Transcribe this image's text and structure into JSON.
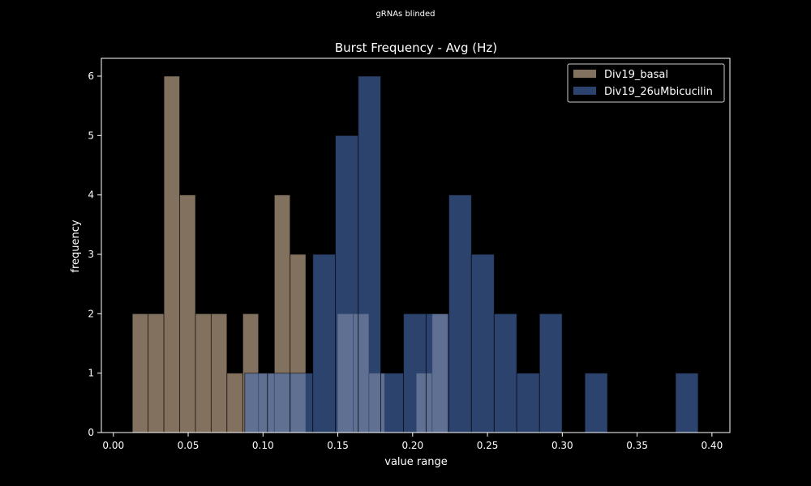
{
  "chart_data": {
    "type": "bar",
    "suptitle": "gRNAs blinded",
    "title": "Burst Frequency - Avg (Hz)",
    "xlabel": "value range",
    "ylabel": "frequency",
    "xlim": [
      -0.008,
      0.412
    ],
    "ylim": [
      0,
      6.3
    ],
    "xticks": [
      0.0,
      0.05,
      0.1,
      0.15,
      0.2,
      0.25,
      0.3,
      0.35,
      0.4
    ],
    "xtick_labels": [
      "0.00",
      "0.05",
      "0.10",
      "0.15",
      "0.20",
      "0.25",
      "0.30",
      "0.35",
      "0.40"
    ],
    "yticks": [
      0,
      1,
      2,
      3,
      4,
      5,
      6
    ],
    "ytick_labels": [
      "0",
      "1",
      "2",
      "3",
      "4",
      "5",
      "6"
    ],
    "grid": false,
    "legend_position": "top-right",
    "series": [
      {
        "name": "Div19_basal",
        "color": "#d8bc9c",
        "opacity": 0.6,
        "bins": [
          {
            "x0": 0.0127,
            "x1": 0.0232,
            "count": 2
          },
          {
            "x0": 0.0232,
            "x1": 0.0338,
            "count": 2
          },
          {
            "x0": 0.0338,
            "x1": 0.0443,
            "count": 6
          },
          {
            "x0": 0.0443,
            "x1": 0.0549,
            "count": 4
          },
          {
            "x0": 0.0549,
            "x1": 0.0654,
            "count": 2
          },
          {
            "x0": 0.0654,
            "x1": 0.0759,
            "count": 2
          },
          {
            "x0": 0.0759,
            "x1": 0.0865,
            "count": 1
          },
          {
            "x0": 0.0865,
            "x1": 0.097,
            "count": 2
          },
          {
            "x0": 0.097,
            "x1": 0.1076,
            "count": 1
          },
          {
            "x0": 0.1076,
            "x1": 0.1181,
            "count": 4
          },
          {
            "x0": 0.1181,
            "x1": 0.1286,
            "count": 3
          },
          {
            "x0": 0.1286,
            "x1": 0.1392,
            "count": 0
          },
          {
            "x0": 0.1392,
            "x1": 0.1497,
            "count": 0
          },
          {
            "x0": 0.1497,
            "x1": 0.1603,
            "count": 2
          },
          {
            "x0": 0.1603,
            "x1": 0.1708,
            "count": 2
          },
          {
            "x0": 0.1708,
            "x1": 0.1813,
            "count": 1
          },
          {
            "x0": 0.1813,
            "x1": 0.1919,
            "count": 0
          },
          {
            "x0": 0.1919,
            "x1": 0.2024,
            "count": 0
          },
          {
            "x0": 0.2024,
            "x1": 0.213,
            "count": 1
          },
          {
            "x0": 0.213,
            "x1": 0.2235,
            "count": 2
          }
        ]
      },
      {
        "name": "Div19_26uMbicucilin",
        "color": "#4a6fb8",
        "opacity": 0.6,
        "bins": [
          {
            "x0": 0.0878,
            "x1": 0.103,
            "count": 1
          },
          {
            "x0": 0.103,
            "x1": 0.1181,
            "count": 1
          },
          {
            "x0": 0.1181,
            "x1": 0.1333,
            "count": 1
          },
          {
            "x0": 0.1333,
            "x1": 0.1484,
            "count": 3
          },
          {
            "x0": 0.1484,
            "x1": 0.1636,
            "count": 5
          },
          {
            "x0": 0.1636,
            "x1": 0.1787,
            "count": 6
          },
          {
            "x0": 0.1787,
            "x1": 0.1939,
            "count": 1
          },
          {
            "x0": 0.1939,
            "x1": 0.209,
            "count": 2
          },
          {
            "x0": 0.209,
            "x1": 0.2242,
            "count": 2
          },
          {
            "x0": 0.2242,
            "x1": 0.2393,
            "count": 4
          },
          {
            "x0": 0.2393,
            "x1": 0.2545,
            "count": 3
          },
          {
            "x0": 0.2545,
            "x1": 0.2696,
            "count": 2
          },
          {
            "x0": 0.2696,
            "x1": 0.2848,
            "count": 1
          },
          {
            "x0": 0.2848,
            "x1": 0.2999,
            "count": 2
          },
          {
            "x0": 0.2999,
            "x1": 0.3151,
            "count": 0
          },
          {
            "x0": 0.3151,
            "x1": 0.3302,
            "count": 1
          },
          {
            "x0": 0.3302,
            "x1": 0.3454,
            "count": 0
          },
          {
            "x0": 0.3454,
            "x1": 0.3605,
            "count": 0
          },
          {
            "x0": 0.3605,
            "x1": 0.3757,
            "count": 0
          },
          {
            "x0": 0.3757,
            "x1": 0.3908,
            "count": 1
          }
        ]
      }
    ]
  }
}
